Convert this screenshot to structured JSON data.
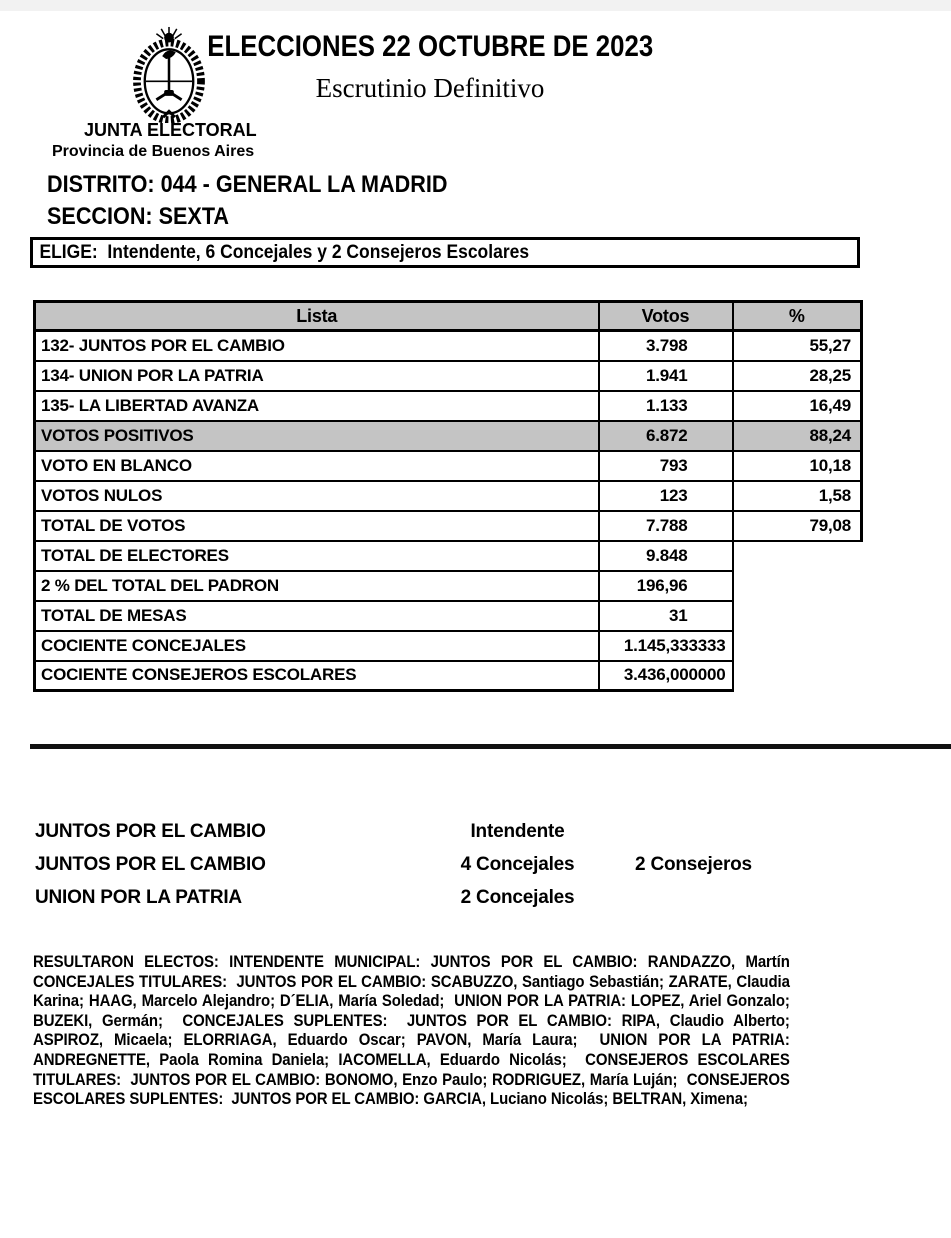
{
  "header": {
    "title": "ELECCIONES 22 OCTUBRE DE 2023",
    "subtitle": "Escrutinio Definitivo",
    "emblem": "argentina-coat-of-arms",
    "org_line1": "JUNTA ELECTORAL",
    "org_line2": "Provincia de Buenos Aires"
  },
  "district_line": "DISTRITO: 044 - GENERAL LA MADRID",
  "section_line": "SECCION: SEXTA",
  "elige_line": "ELIGE:  Intendente, 6 Concejales y 2 Consejeros Escolares",
  "table": {
    "headers": {
      "lista": "Lista",
      "votos": "Votos",
      "pct": "%"
    },
    "rows": [
      {
        "lista": "132- JUNTOS POR EL CAMBIO",
        "votos": "3.798",
        "pct": "55,27"
      },
      {
        "lista": "134- UNION POR LA PATRIA",
        "votos": "1.941",
        "pct": "28,25"
      },
      {
        "lista": "135- LA LIBERTAD AVANZA",
        "votos": "1.133",
        "pct": "16,49"
      },
      {
        "lista": "VOTOS POSITIVOS",
        "votos": "6.872",
        "pct": "88,24",
        "gray": true
      },
      {
        "lista": "VOTO EN BLANCO",
        "votos": "793",
        "pct": "10,18"
      },
      {
        "lista": "VOTOS NULOS",
        "votos": "123",
        "pct": "1,58"
      },
      {
        "lista": "TOTAL DE VOTOS",
        "votos": "7.788",
        "pct": "79,08"
      },
      {
        "lista": "TOTAL DE ELECTORES",
        "votos": "9.848",
        "pct": null
      },
      {
        "lista": "2 % DEL TOTAL DEL PADRON",
        "votos": "196,96",
        "pct": null
      },
      {
        "lista": "TOTAL DE MESAS",
        "votos": "31",
        "pct": null
      },
      {
        "lista": "COCIENTE CONCEJALES",
        "votos": "1.145,333333",
        "pct": null,
        "tight": true
      },
      {
        "lista": "COCIENTE CONSEJEROS ESCOLARES",
        "votos": "3.436,000000",
        "pct": null,
        "tight": true
      }
    ]
  },
  "allocations": [
    {
      "party": "JUNTOS POR EL CAMBIO",
      "seats1": "Intendente",
      "seats2": ""
    },
    {
      "party": "JUNTOS POR EL CAMBIO",
      "seats1": "4 Concejales",
      "seats2": "2 Consejeros"
    },
    {
      "party": "UNION POR LA PATRIA",
      "seats1": "2 Concejales",
      "seats2": ""
    }
  ],
  "results": {
    "text": "RESULTARON ELECTOS: INTENDENTE MUNICIPAL: JUNTOS POR EL CAMBIO: RANDAZZO, Martín  CONCEJALES TITULARES:  JUNTOS POR EL CAMBIO: SCABUZZO, Santiago Sebastián; ZARATE, Claudia Karina; HAAG, Marcelo Alejandro; D´ELIA, María Soledad;  UNION POR LA PATRIA: LOPEZ, Ariel Gonzalo; BUZEKI, Germán;  CONCEJALES SUPLENTES:  JUNTOS POR EL CAMBIO: RIPA, Claudio Alberto; ASPIROZ, Micaela; ELORRIAGA, Eduardo Oscar; PAVON, María Laura;  UNION POR LA PATRIA: ANDREGNETTE, Paola Romina Daniela; IACOMELLA, Eduardo Nicolás;  CONSEJEROS ESCOLARES TITULARES:  JUNTOS POR EL CAMBIO: BONOMO, Enzo Paulo; RODRIGUEZ, María Luján;  CONSEJEROS ESCOLARES SUPLENTES:  JUNTOS POR EL CAMBIO: GARCIA, Luciano Nicolás; BELTRAN, Ximena;"
  },
  "colors": {
    "table_header_bg": "#c4c4c4",
    "highlight_row_bg": "#c4c4c4",
    "top_strip": "#f2f2f2",
    "ink": "#000000"
  }
}
